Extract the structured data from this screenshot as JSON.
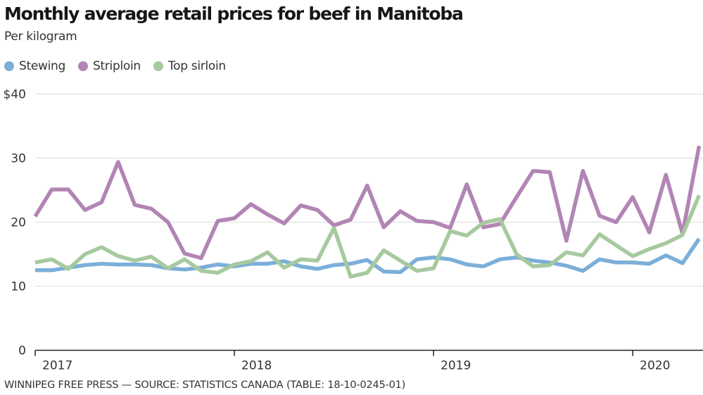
{
  "chart_data": {
    "type": "line",
    "title": "Monthly average retail prices for beef in Manitoba",
    "subtitle": "Per kilogram",
    "xlabel": "",
    "ylabel": "",
    "x_start": "2017-01",
    "x_end": "2020-05",
    "x_frequency": "monthly",
    "xticks": [
      "2017",
      "2018",
      "2019",
      "2020"
    ],
    "yticks": [
      "0",
      "10",
      "20",
      "30",
      "$40"
    ],
    "ytick_values": [
      0,
      10,
      20,
      30,
      40
    ],
    "ylim": [
      0,
      40
    ],
    "grid": true,
    "legend_position": "top-left",
    "series": [
      {
        "name": "Stewing",
        "color": "#7bafd9",
        "values": [
          12.5,
          12.5,
          12.9,
          13.3,
          13.5,
          13.4,
          13.4,
          13.3,
          12.8,
          12.6,
          12.9,
          13.4,
          13.1,
          13.5,
          13.5,
          13.9,
          13.1,
          12.7,
          13.3,
          13.5,
          14.1,
          12.3,
          12.2,
          14.2,
          14.5,
          14.2,
          13.4,
          13.1,
          14.2,
          14.5,
          14.0,
          13.7,
          13.2,
          12.4,
          14.2,
          13.7,
          13.7,
          13.5,
          14.8,
          13.6,
          17.4
        ]
      },
      {
        "name": "Striploin",
        "color": "#b285b5",
        "values": [
          20.9,
          25.1,
          25.1,
          21.9,
          23.1,
          29.4,
          22.7,
          22.1,
          20.0,
          15.1,
          14.4,
          20.2,
          20.6,
          22.8,
          21.2,
          19.8,
          22.6,
          21.9,
          19.5,
          20.4,
          25.7,
          19.2,
          21.7,
          20.2,
          20.0,
          19.1,
          25.9,
          19.2,
          19.7,
          23.9,
          28.0,
          27.8,
          17.1,
          28.0,
          21.0,
          20.0,
          23.9,
          18.4,
          27.4,
          18.2,
          31.9
        ]
      },
      {
        "name": "Top sirloin",
        "color": "#a7c99f",
        "values": [
          13.7,
          14.2,
          12.7,
          15.0,
          16.1,
          14.7,
          14.0,
          14.6,
          12.8,
          14.2,
          12.4,
          12.1,
          13.4,
          13.9,
          15.3,
          12.9,
          14.2,
          14.0,
          19.1,
          11.5,
          12.1,
          15.6,
          14.0,
          12.4,
          12.8,
          18.6,
          17.9,
          19.9,
          20.5,
          15.0,
          13.1,
          13.3,
          15.3,
          14.8,
          18.1,
          16.4,
          14.7,
          15.8,
          16.7,
          18.0,
          24.2
        ]
      }
    ]
  },
  "footer": "WINNIPEG FREE PRESS — SOURCE: STATISTICS CANADA (TABLE: 18-10-0245-01)"
}
